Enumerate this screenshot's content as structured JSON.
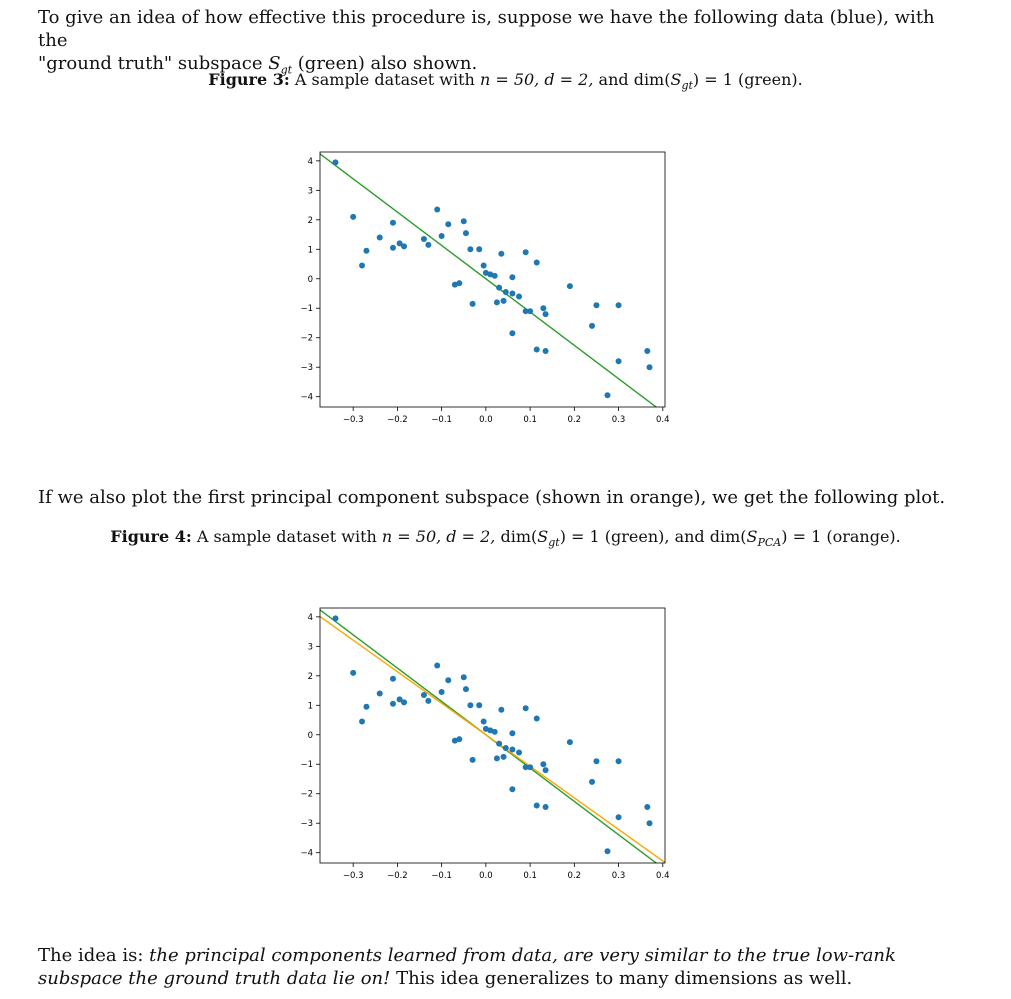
{
  "intro": {
    "line1": "To give an idea of how effective this procedure is, suppose we have the following data (blue), with the",
    "line2_pre": "\"ground truth\" subspace ",
    "s_letter": "S",
    "gt_sub": "gt",
    "line2_post": " (green) also shown."
  },
  "fig3": {
    "label": "Figure 3:",
    "text_a": "A sample dataset with ",
    "n_eq": "n = 50, d = 2,",
    "text_b": " and dim(",
    "s": "S",
    "sub": "gt",
    "text_c": ") = 1 (green)."
  },
  "middle": {
    "text": "If we also plot the first principal component subspace (shown in orange), we get the following plot."
  },
  "fig4": {
    "label": "Figure 4:",
    "text_a": "A sample dataset with ",
    "n_eq": "n = 50, d = 2,",
    "text_b": " dim(",
    "s1": "S",
    "sub1": "gt",
    "text_c": ") = 1 (green), and dim(",
    "s2": "S",
    "sub2": "PCA",
    "text_d": ") = 1 (orange)."
  },
  "outro": {
    "pre": "The idea is: ",
    "em": "the principal components learned from data, are very similar to the true low-rank subspace the ground truth data lie on!",
    "post": " This idea generalizes to many dimensions as well."
  },
  "chart_data": [
    {
      "type": "scatter",
      "title": "",
      "xlabel": "",
      "ylabel": "",
      "xlim": [
        -0.375,
        0.405
      ],
      "ylim": [
        -4.35,
        4.3
      ],
      "xticks": [
        "−0.3",
        "−0.2",
        "−0.1",
        "0.0",
        "0.1",
        "0.2",
        "0.3",
        "0.4"
      ],
      "yticks": [
        "4",
        "3",
        "2",
        "1",
        "0",
        "−1",
        "−2",
        "−3",
        "−4"
      ],
      "colors": {
        "points": "#1f77b4",
        "gt": "#2a9d2a",
        "pca": "#ffa500"
      },
      "points": [
        [
          -0.34,
          3.95
        ],
        [
          -0.3,
          2.1
        ],
        [
          -0.28,
          0.45
        ],
        [
          -0.27,
          0.95
        ],
        [
          -0.24,
          1.4
        ],
        [
          -0.21,
          1.9
        ],
        [
          -0.21,
          1.05
        ],
        [
          -0.195,
          1.2
        ],
        [
          -0.185,
          1.1
        ],
        [
          -0.14,
          1.35
        ],
        [
          -0.13,
          1.15
        ],
        [
          -0.11,
          2.35
        ],
        [
          -0.1,
          1.45
        ],
        [
          -0.085,
          1.85
        ],
        [
          -0.07,
          -0.2
        ],
        [
          -0.06,
          -0.15
        ],
        [
          -0.05,
          1.95
        ],
        [
          -0.045,
          1.55
        ],
        [
          -0.035,
          1.0
        ],
        [
          -0.03,
          -0.85
        ],
        [
          -0.015,
          1.0
        ],
        [
          -0.005,
          0.45
        ],
        [
          0.0,
          0.2
        ],
        [
          0.01,
          0.15
        ],
        [
          0.02,
          0.1
        ],
        [
          0.025,
          -0.8
        ],
        [
          0.03,
          -0.3
        ],
        [
          0.035,
          0.85
        ],
        [
          0.04,
          -0.75
        ],
        [
          0.045,
          -0.45
        ],
        [
          0.06,
          -0.5
        ],
        [
          0.06,
          0.05
        ],
        [
          0.06,
          -1.85
        ],
        [
          0.075,
          -0.6
        ],
        [
          0.09,
          -1.1
        ],
        [
          0.09,
          0.9
        ],
        [
          0.1,
          -1.1
        ],
        [
          0.115,
          0.55
        ],
        [
          0.115,
          -2.4
        ],
        [
          0.13,
          -1.0
        ],
        [
          0.135,
          -1.2
        ],
        [
          0.135,
          -2.45
        ],
        [
          0.19,
          -0.25
        ],
        [
          0.24,
          -1.6
        ],
        [
          0.25,
          -0.9
        ],
        [
          0.275,
          -3.95
        ],
        [
          0.3,
          -0.9
        ],
        [
          0.3,
          -2.8
        ],
        [
          0.365,
          -2.45
        ],
        [
          0.37,
          -3.0
        ]
      ],
      "lines": [
        {
          "name": "",
          "slope": -11.3,
          "intercept": 0.0
        }
      ]
    },
    {
      "type": "scatter",
      "title": "",
      "xlabel": "",
      "ylabel": "",
      "xlim": [
        -0.375,
        0.405
      ],
      "ylim": [
        -4.35,
        4.3
      ],
      "xticks": [
        "−0.3",
        "−0.2",
        "−0.1",
        "0.0",
        "0.1",
        "0.2",
        "0.3",
        "0.4"
      ],
      "yticks": [
        "4",
        "3",
        "2",
        "1",
        "0",
        "−1",
        "−2",
        "−3",
        "−4"
      ],
      "colors": {
        "points": "#1f77b4",
        "gt": "#2a9d2a",
        "pca": "#ffa500"
      },
      "points": [
        [
          -0.34,
          3.95
        ],
        [
          -0.3,
          2.1
        ],
        [
          -0.28,
          0.45
        ],
        [
          -0.27,
          0.95
        ],
        [
          -0.24,
          1.4
        ],
        [
          -0.21,
          1.9
        ],
        [
          -0.21,
          1.05
        ],
        [
          -0.195,
          1.2
        ],
        [
          -0.185,
          1.1
        ],
        [
          -0.14,
          1.35
        ],
        [
          -0.13,
          1.15
        ],
        [
          -0.11,
          2.35
        ],
        [
          -0.1,
          1.45
        ],
        [
          -0.085,
          1.85
        ],
        [
          -0.07,
          -0.2
        ],
        [
          -0.06,
          -0.15
        ],
        [
          -0.05,
          1.95
        ],
        [
          -0.045,
          1.55
        ],
        [
          -0.035,
          1.0
        ],
        [
          -0.03,
          -0.85
        ],
        [
          -0.015,
          1.0
        ],
        [
          -0.005,
          0.45
        ],
        [
          0.0,
          0.2
        ],
        [
          0.01,
          0.15
        ],
        [
          0.02,
          0.1
        ],
        [
          0.025,
          -0.8
        ],
        [
          0.03,
          -0.3
        ],
        [
          0.035,
          0.85
        ],
        [
          0.04,
          -0.75
        ],
        [
          0.045,
          -0.45
        ],
        [
          0.06,
          -0.5
        ],
        [
          0.06,
          0.05
        ],
        [
          0.06,
          -1.85
        ],
        [
          0.075,
          -0.6
        ],
        [
          0.09,
          -1.1
        ],
        [
          0.09,
          0.9
        ],
        [
          0.1,
          -1.1
        ],
        [
          0.115,
          0.55
        ],
        [
          0.115,
          -2.4
        ],
        [
          0.13,
          -1.0
        ],
        [
          0.135,
          -1.2
        ],
        [
          0.135,
          -2.45
        ],
        [
          0.19,
          -0.25
        ],
        [
          0.24,
          -1.6
        ],
        [
          0.25,
          -0.9
        ],
        [
          0.275,
          -3.95
        ],
        [
          0.3,
          -0.9
        ],
        [
          0.3,
          -2.8
        ],
        [
          0.365,
          -2.45
        ],
        [
          0.37,
          -3.0
        ]
      ],
      "lines": [
        {
          "name": "",
          "slope": -11.3,
          "intercept": 0.0
        },
        {
          "name": "",
          "slope": -10.7,
          "intercept": 0.0
        }
      ]
    }
  ]
}
